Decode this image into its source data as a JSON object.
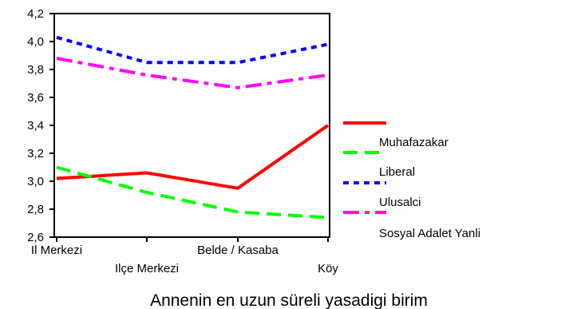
{
  "chart_data": {
    "type": "line",
    "title": "",
    "xlabel": "Annenin en uzun süreli yasadigi birim",
    "ylabel": "",
    "categories": [
      "Il Merkezi",
      "Ilçe Merkezi",
      "Belde / Kasaba",
      "Köy"
    ],
    "ylim": [
      2.6,
      4.2
    ],
    "yticks": [
      "2,6",
      "2,8",
      "3,0",
      "3,2",
      "3,4",
      "3,6",
      "3,8",
      "4,0",
      "4,2"
    ],
    "grid": false,
    "legend_position": "right",
    "series": [
      {
        "name": "Muhafazakar",
        "color": "#ff0000",
        "dash": "solid",
        "values": [
          3.02,
          3.06,
          2.95,
          3.4
        ]
      },
      {
        "name": "Liberal",
        "color": "#00ff00",
        "dash": "long-dash",
        "values": [
          3.1,
          2.92,
          2.78,
          2.74
        ]
      },
      {
        "name": "Ulusalci",
        "color": "#0000ff",
        "dash": "dotted",
        "values": [
          4.03,
          3.85,
          3.85,
          3.98
        ]
      },
      {
        "name": "Sosyal Adalet Yanli",
        "color": "#ff00ff",
        "dash": "dash-dot",
        "values": [
          3.88,
          3.76,
          3.67,
          3.76
        ]
      }
    ]
  }
}
